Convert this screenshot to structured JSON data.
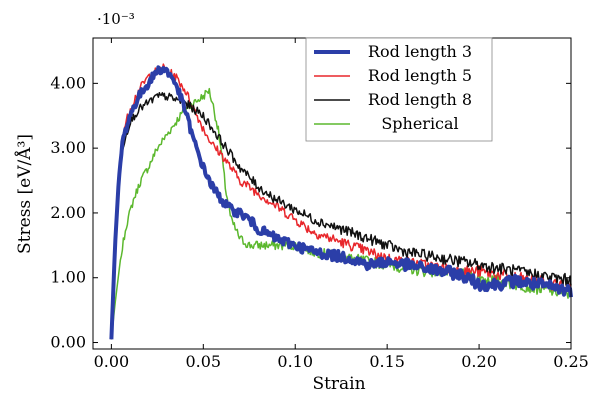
{
  "chart_data": {
    "type": "line",
    "xlabel": "Strain",
    "ylabel": "Stress [eV/Å³]",
    "y_multiplier_label": "·10⁻³",
    "xlim": [
      -0.01,
      0.25
    ],
    "ylim": [
      -0.0001,
      0.0047
    ],
    "x_ticks": [
      0.0,
      0.05,
      0.1,
      0.15,
      0.2,
      0.25
    ],
    "x_tick_labels": [
      "0.00",
      "0.05",
      "0.10",
      "0.15",
      "0.20",
      "0.25"
    ],
    "y_ticks": [
      0.0,
      0.001,
      0.002,
      0.003,
      0.004
    ],
    "y_tick_labels": [
      "0.00",
      "1.00",
      "2.00",
      "3.00",
      "4.00"
    ],
    "grid": false,
    "legend_position": "top-right",
    "series": [
      {
        "name": "Rod length 3",
        "color": "#2b3ea8",
        "line_width": 4,
        "points": [
          [
            0.0,
            5e-05
          ],
          [
            0.002,
            0.0015
          ],
          [
            0.004,
            0.0025
          ],
          [
            0.006,
            0.0031
          ],
          [
            0.01,
            0.0035
          ],
          [
            0.015,
            0.0038
          ],
          [
            0.02,
            0.004
          ],
          [
            0.025,
            0.0042
          ],
          [
            0.028,
            0.00422
          ],
          [
            0.03,
            0.0042
          ],
          [
            0.035,
            0.004
          ],
          [
            0.04,
            0.0036
          ],
          [
            0.045,
            0.0031
          ],
          [
            0.05,
            0.0027
          ],
          [
            0.055,
            0.0024
          ],
          [
            0.06,
            0.0022
          ],
          [
            0.065,
            0.00205
          ],
          [
            0.07,
            0.002
          ],
          [
            0.075,
            0.0019
          ],
          [
            0.08,
            0.00175
          ],
          [
            0.09,
            0.0016
          ],
          [
            0.1,
            0.0015
          ],
          [
            0.11,
            0.0014
          ],
          [
            0.12,
            0.00135
          ],
          [
            0.13,
            0.0013
          ],
          [
            0.14,
            0.0012
          ],
          [
            0.15,
            0.00125
          ],
          [
            0.16,
            0.0012
          ],
          [
            0.17,
            0.00115
          ],
          [
            0.18,
            0.0011
          ],
          [
            0.19,
            0.00105
          ],
          [
            0.2,
            0.0009
          ],
          [
            0.21,
            0.0009
          ],
          [
            0.22,
            0.00095
          ],
          [
            0.23,
            0.0009
          ],
          [
            0.24,
            0.00085
          ],
          [
            0.25,
            0.0008
          ]
        ]
      },
      {
        "name": "Rod length 5",
        "color": "#e8262b",
        "line_width": 1.5,
        "points": [
          [
            0.0,
            5e-05
          ],
          [
            0.002,
            0.0016
          ],
          [
            0.004,
            0.0026
          ],
          [
            0.006,
            0.0032
          ],
          [
            0.01,
            0.0036
          ],
          [
            0.015,
            0.0039
          ],
          [
            0.02,
            0.0041
          ],
          [
            0.025,
            0.0042
          ],
          [
            0.028,
            0.00425
          ],
          [
            0.03,
            0.0042
          ],
          [
            0.035,
            0.0041
          ],
          [
            0.04,
            0.0039
          ],
          [
            0.045,
            0.0036
          ],
          [
            0.05,
            0.0033
          ],
          [
            0.055,
            0.00305
          ],
          [
            0.06,
            0.0029
          ],
          [
            0.065,
            0.0027
          ],
          [
            0.07,
            0.0025
          ],
          [
            0.08,
            0.0023
          ],
          [
            0.09,
            0.0021
          ],
          [
            0.1,
            0.0019
          ],
          [
            0.11,
            0.0017
          ],
          [
            0.12,
            0.0016
          ],
          [
            0.13,
            0.0015
          ],
          [
            0.14,
            0.0014
          ],
          [
            0.15,
            0.0013
          ],
          [
            0.16,
            0.00125
          ],
          [
            0.17,
            0.0012
          ],
          [
            0.18,
            0.00115
          ],
          [
            0.19,
            0.0011
          ],
          [
            0.2,
            0.0011
          ],
          [
            0.21,
            0.00105
          ],
          [
            0.22,
            0.001
          ],
          [
            0.23,
            0.00095
          ],
          [
            0.24,
            0.0009
          ],
          [
            0.25,
            0.00085
          ]
        ]
      },
      {
        "name": "Rod length 8",
        "color": "#111111",
        "line_width": 1.5,
        "points": [
          [
            0.0,
            5e-05
          ],
          [
            0.002,
            0.0015
          ],
          [
            0.004,
            0.0025
          ],
          [
            0.006,
            0.003
          ],
          [
            0.01,
            0.0034
          ],
          [
            0.015,
            0.0036
          ],
          [
            0.02,
            0.0037
          ],
          [
            0.025,
            0.0038
          ],
          [
            0.03,
            0.0038
          ],
          [
            0.035,
            0.00375
          ],
          [
            0.04,
            0.0037
          ],
          [
            0.045,
            0.0036
          ],
          [
            0.05,
            0.0035
          ],
          [
            0.055,
            0.0033
          ],
          [
            0.06,
            0.0031
          ],
          [
            0.065,
            0.0029
          ],
          [
            0.07,
            0.0027
          ],
          [
            0.08,
            0.0024
          ],
          [
            0.09,
            0.0022
          ],
          [
            0.1,
            0.00205
          ],
          [
            0.11,
            0.0019
          ],
          [
            0.12,
            0.0018
          ],
          [
            0.13,
            0.0017
          ],
          [
            0.14,
            0.0016
          ],
          [
            0.15,
            0.0015
          ],
          [
            0.16,
            0.0014
          ],
          [
            0.17,
            0.00135
          ],
          [
            0.18,
            0.0013
          ],
          [
            0.19,
            0.00125
          ],
          [
            0.2,
            0.0012
          ],
          [
            0.21,
            0.00115
          ],
          [
            0.22,
            0.0011
          ],
          [
            0.23,
            0.00105
          ],
          [
            0.24,
            0.001
          ],
          [
            0.25,
            0.00095
          ]
        ]
      },
      {
        "name": "Spherical",
        "color": "#5cb82e",
        "line_width": 1.5,
        "points": [
          [
            0.0,
            5e-05
          ],
          [
            0.002,
            0.0006
          ],
          [
            0.005,
            0.0013
          ],
          [
            0.008,
            0.0018
          ],
          [
            0.012,
            0.0022
          ],
          [
            0.016,
            0.0025
          ],
          [
            0.02,
            0.0027
          ],
          [
            0.025,
            0.003
          ],
          [
            0.03,
            0.0032
          ],
          [
            0.035,
            0.0034
          ],
          [
            0.04,
            0.0036
          ],
          [
            0.045,
            0.0037
          ],
          [
            0.05,
            0.0038
          ],
          [
            0.053,
            0.0039
          ],
          [
            0.055,
            0.0037
          ],
          [
            0.058,
            0.0033
          ],
          [
            0.06,
            0.0029
          ],
          [
            0.062,
            0.0024
          ],
          [
            0.065,
            0.0019
          ],
          [
            0.07,
            0.0016
          ],
          [
            0.075,
            0.0015
          ],
          [
            0.08,
            0.0015
          ],
          [
            0.09,
            0.0015
          ],
          [
            0.1,
            0.0015
          ],
          [
            0.11,
            0.0014
          ],
          [
            0.12,
            0.00135
          ],
          [
            0.13,
            0.0013
          ],
          [
            0.14,
            0.00125
          ],
          [
            0.15,
            0.0012
          ],
          [
            0.16,
            0.00115
          ],
          [
            0.17,
            0.0011
          ],
          [
            0.18,
            0.0011
          ],
          [
            0.19,
            0.00105
          ],
          [
            0.2,
            0.001
          ],
          [
            0.21,
            0.00095
          ],
          [
            0.22,
            0.0009
          ],
          [
            0.23,
            0.00085
          ],
          [
            0.24,
            0.0008
          ],
          [
            0.25,
            0.00075
          ]
        ]
      }
    ]
  }
}
